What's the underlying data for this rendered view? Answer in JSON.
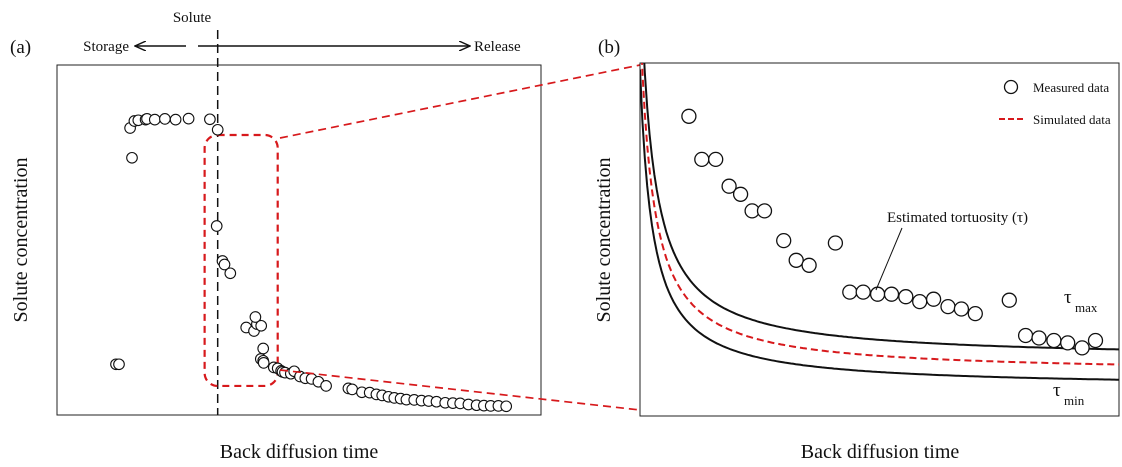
{
  "chart_data": [
    {
      "panel_label": "(a)",
      "type": "scatter",
      "xlabel": "Back diffusion time",
      "ylabel": "Solute concentration",
      "top_annotation": "Solute",
      "left_arrow_label": "Storage",
      "right_arrow_label": "Release",
      "series": [
        {
          "points": [
            [
              12.2,
              14.5
            ],
            [
              12.8,
              14.5
            ],
            [
              15.5,
              73.5
            ],
            [
              15.1,
              82
            ],
            [
              16.0,
              84
            ],
            [
              16.8,
              84.2
            ],
            [
              18.3,
              84.4
            ],
            [
              18.6,
              84.6
            ],
            [
              20.2,
              84.4
            ],
            [
              22.3,
              84.6
            ],
            [
              24.5,
              84.4
            ],
            [
              27.2,
              84.7
            ],
            [
              31.6,
              84.5
            ],
            [
              33.2,
              81.5
            ],
            [
              33.0,
              54
            ],
            [
              34.2,
              44
            ],
            [
              34.6,
              43
            ],
            [
              35.8,
              40.5
            ],
            [
              39.1,
              25
            ],
            [
              40.7,
              24
            ],
            [
              41.3,
              26
            ],
            [
              41.0,
              28
            ],
            [
              42.2,
              25.5
            ],
            [
              42.6,
              19
            ],
            [
              42.1,
              16
            ],
            [
              42.6,
              15.5
            ],
            [
              42.7,
              14.9
            ],
            [
              44.8,
              13.6
            ],
            [
              45.6,
              13.3
            ],
            [
              46.3,
              12.6
            ],
            [
              46.6,
              12.3
            ],
            [
              47.1,
              12.1
            ],
            [
              48.3,
              11.8
            ],
            [
              49.0,
              12.5
            ],
            [
              50.2,
              11.0
            ],
            [
              51.3,
              10.5
            ],
            [
              52.6,
              10.3
            ],
            [
              54.0,
              9.5
            ],
            [
              55.6,
              8.3
            ],
            [
              60.2,
              7.6
            ],
            [
              61.0,
              7.3
            ],
            [
              63.0,
              6.5
            ],
            [
              64.6,
              6.4
            ],
            [
              66.0,
              5.9
            ],
            [
              67.2,
              5.6
            ],
            [
              68.5,
              5.2
            ],
            [
              69.7,
              4.9
            ],
            [
              71.0,
              4.7
            ],
            [
              72.2,
              4.4
            ],
            [
              73.8,
              4.3
            ],
            [
              75.3,
              4.1
            ],
            [
              76.8,
              4.0
            ],
            [
              78.4,
              3.8
            ],
            [
              80.2,
              3.5
            ],
            [
              81.8,
              3.4
            ],
            [
              83.3,
              3.3
            ],
            [
              85.0,
              3.0
            ],
            [
              86.7,
              2.8
            ],
            [
              88.2,
              2.7
            ],
            [
              89.6,
              2.6
            ],
            [
              91.2,
              2.6
            ],
            [
              92.8,
              2.5
            ]
          ]
        }
      ],
      "solute_line_x": 33.2,
      "inset_box": {
        "x0": 30.5,
        "x1": 45.6,
        "y0": 8.3,
        "y1": 80.0
      },
      "xlim": [
        0,
        100
      ],
      "ylim": [
        0,
        100
      ],
      "ticks": false,
      "grid": false
    },
    {
      "panel_label": "(b)",
      "type": "scatter",
      "xlabel": "Back diffusion time",
      "ylabel": "Solute concentration",
      "annotation": "Estimated tortuosity (τ)",
      "tau_label": "τ",
      "tau_max_sub": "max",
      "tau_min_sub": "min",
      "legend": [
        {
          "label": "Measured data",
          "marker": "circle"
        },
        {
          "label": "Simulated data",
          "marker": "dashed-line"
        }
      ],
      "legend_position": "top-right",
      "series": [
        {
          "name": "Measured data",
          "points": [
            [
              10.2,
              84.9
            ],
            [
              12.9,
              72.7
            ],
            [
              15.8,
              72.7
            ],
            [
              18.6,
              65.1
            ],
            [
              21.0,
              62.8
            ],
            [
              23.4,
              58.1
            ],
            [
              26.0,
              58.1
            ],
            [
              30.0,
              49.7
            ],
            [
              32.6,
              44.1
            ],
            [
              35.3,
              42.7
            ],
            [
              40.8,
              49.0
            ],
            [
              43.8,
              35.1
            ],
            [
              46.6,
              35.1
            ],
            [
              49.6,
              34.5
            ],
            [
              52.5,
              34.5
            ],
            [
              55.5,
              33.8
            ],
            [
              58.4,
              32.4
            ],
            [
              61.3,
              33.1
            ],
            [
              64.3,
              31.0
            ],
            [
              67.1,
              30.3
            ],
            [
              70.0,
              29.0
            ],
            [
              77.1,
              32.8
            ],
            [
              80.5,
              22.8
            ],
            [
              83.3,
              22.1
            ],
            [
              86.4,
              21.4
            ],
            [
              89.3,
              20.7
            ],
            [
              92.3,
              19.3
            ],
            [
              95.1,
              21.4
            ]
          ]
        },
        {
          "name": "Simulated data",
          "curve": "tau",
          "k": 2.5,
          "color": "#d7191c",
          "style": "dashed"
        },
        {
          "curve": "tau_max",
          "k": 3.0,
          "color": "#111111",
          "style": "solid"
        },
        {
          "curve": "tau_min",
          "k": 2.0,
          "color": "#111111",
          "style": "solid"
        }
      ],
      "xlim": [
        0,
        100
      ],
      "ylim": [
        0,
        100
      ],
      "ticks": false,
      "grid": false
    }
  ],
  "colors": {
    "accent": "#d7191c",
    "ink": "#111111"
  }
}
